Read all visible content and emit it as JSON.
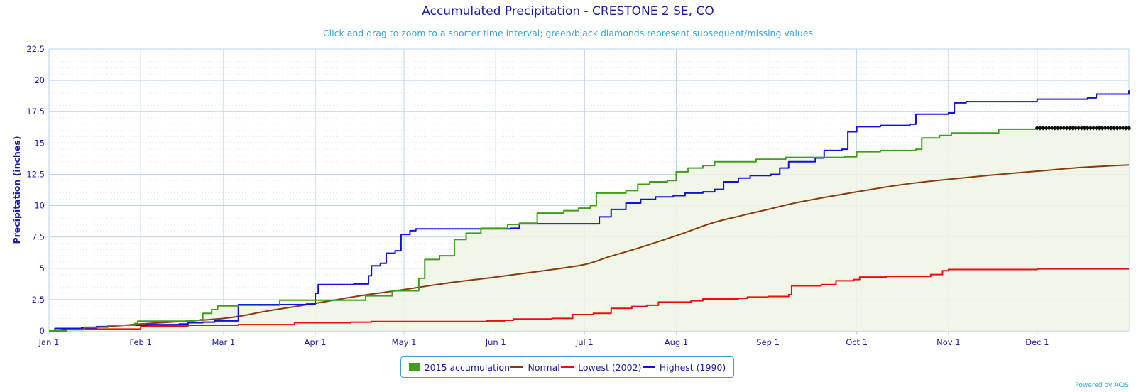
{
  "colors": {
    "accumulation": "#3f9e1a",
    "accumulation_fill": "#eef5e4",
    "normal": "#8b3a0e",
    "lowest": "#e8100e",
    "highest": "#1010e0",
    "missing_marker": "#111111",
    "grid": "#b9d6ec",
    "text": "#1c1ca0",
    "subtitle": "#39a3d6"
  },
  "chart_data": {
    "type": "line",
    "title": "Accumulated Precipitation - CRESTONE 2 SE, CO",
    "subtitle": "Click and drag to zoom to a shorter time interval; green/black diamonds represent subsequent/missing values",
    "ylabel": "Precipitation (inches)",
    "xlabel": "",
    "x_unit": "day of year",
    "xlim": [
      1,
      366
    ],
    "ylim": [
      0,
      22.5
    ],
    "y_ticks": [
      0,
      2.5,
      5,
      7.5,
      10,
      12.5,
      15,
      17.5,
      20,
      22.5
    ],
    "y_tick_labels": [
      "0",
      "2.5",
      "5",
      "7.5",
      "10",
      "12.5",
      "15",
      "17.5",
      "20",
      "22.5"
    ],
    "x_ticks": [
      {
        "day": 1,
        "label": "Jan 1"
      },
      {
        "day": 32,
        "label": "Feb 1"
      },
      {
        "day": 60,
        "label": "Mar 1"
      },
      {
        "day": 91,
        "label": "Apr 1"
      },
      {
        "day": 121,
        "label": "May 1"
      },
      {
        "day": 152,
        "label": "Jun 1"
      },
      {
        "day": 182,
        "label": "Jul 1"
      },
      {
        "day": 213,
        "label": "Aug 1"
      },
      {
        "day": 244,
        "label": "Sep 1"
      },
      {
        "day": 274,
        "label": "Oct 1"
      },
      {
        "day": 305,
        "label": "Nov 1"
      },
      {
        "day": 335,
        "label": "Dec 1"
      }
    ],
    "grid": true,
    "legend_position": "bottom-center",
    "series": [
      {
        "name": "2015 accumulation",
        "style": "step-area",
        "points": [
          [
            1,
            0
          ],
          [
            7,
            0.1
          ],
          [
            13,
            0.3
          ],
          [
            21,
            0.45
          ],
          [
            30,
            0.6
          ],
          [
            31,
            0.78
          ],
          [
            50,
            0.85
          ],
          [
            52,
            0.9
          ],
          [
            53,
            1.4
          ],
          [
            56,
            1.7
          ],
          [
            58,
            2.0
          ],
          [
            65,
            2.05
          ],
          [
            79,
            2.45
          ],
          [
            90,
            2.45
          ],
          [
            108,
            2.8
          ],
          [
            117,
            3.2
          ],
          [
            126,
            4.2
          ],
          [
            128,
            5.7
          ],
          [
            133,
            6.0
          ],
          [
            138,
            7.3
          ],
          [
            142,
            7.8
          ],
          [
            147,
            8.2
          ],
          [
            156,
            8.5
          ],
          [
            160,
            8.6
          ],
          [
            166,
            9.4
          ],
          [
            175,
            9.6
          ],
          [
            180,
            9.8
          ],
          [
            184,
            10.0
          ],
          [
            186,
            11.0
          ],
          [
            196,
            11.2
          ],
          [
            200,
            11.7
          ],
          [
            204,
            11.9
          ],
          [
            210,
            12.0
          ],
          [
            213,
            12.7
          ],
          [
            217,
            13.0
          ],
          [
            222,
            13.2
          ],
          [
            226,
            13.5
          ],
          [
            235,
            13.5
          ],
          [
            240,
            13.7
          ],
          [
            250,
            13.85
          ],
          [
            270,
            13.9
          ],
          [
            274,
            14.3
          ],
          [
            282,
            14.4
          ],
          [
            294,
            14.5
          ],
          [
            296,
            15.4
          ],
          [
            302,
            15.6
          ],
          [
            306,
            15.8
          ],
          [
            322,
            16.1
          ],
          [
            335,
            16.2
          ]
        ]
      },
      {
        "name": "Normal",
        "style": "smooth",
        "points": [
          [
            1,
            0
          ],
          [
            15,
            0.25
          ],
          [
            32,
            0.55
          ],
          [
            60,
            1.0
          ],
          [
            75,
            1.6
          ],
          [
            91,
            2.2
          ],
          [
            106,
            2.8
          ],
          [
            121,
            3.3
          ],
          [
            135,
            3.8
          ],
          [
            152,
            4.3
          ],
          [
            168,
            4.8
          ],
          [
            182,
            5.3
          ],
          [
            190,
            5.9
          ],
          [
            200,
            6.6
          ],
          [
            213,
            7.6
          ],
          [
            225,
            8.6
          ],
          [
            235,
            9.2
          ],
          [
            244,
            9.7
          ],
          [
            255,
            10.3
          ],
          [
            274,
            11.1
          ],
          [
            290,
            11.7
          ],
          [
            305,
            12.1
          ],
          [
            320,
            12.45
          ],
          [
            335,
            12.75
          ],
          [
            350,
            13.05
          ],
          [
            366,
            13.25
          ]
        ]
      },
      {
        "name": "Lowest (2002)",
        "style": "step",
        "points": [
          [
            1,
            0
          ],
          [
            7,
            0.15
          ],
          [
            30,
            0.15
          ],
          [
            32,
            0.4
          ],
          [
            48,
            0.45
          ],
          [
            65,
            0.5
          ],
          [
            82,
            0.5
          ],
          [
            84,
            0.65
          ],
          [
            103,
            0.7
          ],
          [
            110,
            0.75
          ],
          [
            145,
            0.75
          ],
          [
            149,
            0.8
          ],
          [
            155,
            0.85
          ],
          [
            158,
            0.95
          ],
          [
            171,
            1.0
          ],
          [
            178,
            1.3
          ],
          [
            185,
            1.4
          ],
          [
            191,
            1.8
          ],
          [
            198,
            1.95
          ],
          [
            203,
            2.05
          ],
          [
            207,
            2.3
          ],
          [
            218,
            2.4
          ],
          [
            222,
            2.55
          ],
          [
            234,
            2.6
          ],
          [
            237,
            2.7
          ],
          [
            244,
            2.75
          ],
          [
            251,
            2.9
          ],
          [
            252,
            3.6
          ],
          [
            262,
            3.7
          ],
          [
            267,
            4.0
          ],
          [
            273,
            4.1
          ],
          [
            275,
            4.3
          ],
          [
            284,
            4.35
          ],
          [
            299,
            4.5
          ],
          [
            303,
            4.8
          ],
          [
            305,
            4.9
          ],
          [
            335,
            4.95
          ],
          [
            366,
            4.95
          ]
        ]
      },
      {
        "name": "Highest (1990)",
        "style": "step",
        "points": [
          [
            1,
            0
          ],
          [
            3,
            0.2
          ],
          [
            12,
            0.25
          ],
          [
            17,
            0.35
          ],
          [
            21,
            0.45
          ],
          [
            34,
            0.5
          ],
          [
            45,
            0.55
          ],
          [
            48,
            0.65
          ],
          [
            53,
            0.7
          ],
          [
            57,
            0.8
          ],
          [
            64,
            0.8
          ],
          [
            65,
            2.1
          ],
          [
            88,
            2.15
          ],
          [
            91,
            3.0
          ],
          [
            92,
            3.7
          ],
          [
            104,
            3.75
          ],
          [
            109,
            4.4
          ],
          [
            110,
            5.2
          ],
          [
            113,
            5.4
          ],
          [
            115,
            6.2
          ],
          [
            118,
            6.4
          ],
          [
            120,
            7.7
          ],
          [
            123,
            8.0
          ],
          [
            125,
            8.15
          ],
          [
            157,
            8.2
          ],
          [
            160,
            8.55
          ],
          [
            184,
            8.55
          ],
          [
            187,
            9.1
          ],
          [
            191,
            9.7
          ],
          [
            196,
            10.2
          ],
          [
            201,
            10.5
          ],
          [
            206,
            10.7
          ],
          [
            212,
            10.8
          ],
          [
            216,
            11.0
          ],
          [
            222,
            11.1
          ],
          [
            226,
            11.3
          ],
          [
            229,
            11.9
          ],
          [
            234,
            12.2
          ],
          [
            238,
            12.4
          ],
          [
            245,
            12.5
          ],
          [
            248,
            13.0
          ],
          [
            251,
            13.5
          ],
          [
            260,
            13.8
          ],
          [
            263,
            14.4
          ],
          [
            269,
            14.5
          ],
          [
            271,
            15.9
          ],
          [
            274,
            16.3
          ],
          [
            282,
            16.4
          ],
          [
            292,
            16.5
          ],
          [
            294,
            17.3
          ],
          [
            305,
            17.4
          ],
          [
            307,
            18.2
          ],
          [
            311,
            18.3
          ],
          [
            335,
            18.5
          ],
          [
            352,
            18.6
          ],
          [
            355,
            18.9
          ],
          [
            366,
            19.2
          ]
        ]
      }
    ],
    "missing_values": {
      "name": "missing",
      "value": 16.2,
      "day_range": [
        335,
        366
      ]
    }
  },
  "legend": {
    "items": [
      {
        "label": "2015 accumulation"
      },
      {
        "label": "Normal"
      },
      {
        "label": "Lowest (2002)"
      },
      {
        "label": "Highest (1990)"
      }
    ]
  },
  "credit": "Powered by ACIS"
}
